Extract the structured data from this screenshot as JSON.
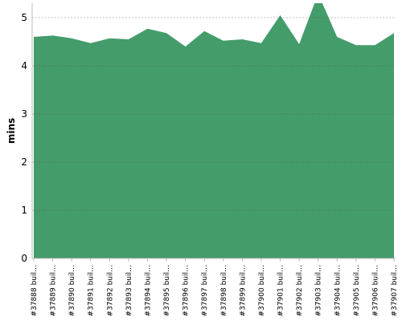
{
  "chart_data": {
    "type": "area",
    "ylabel": "mins",
    "categories": [
      "#37888 buil…",
      "#37889 buil…",
      "#37890 buil…",
      "#37891 buil…",
      "#37892 buil…",
      "#37893 buil…",
      "#37894 buil…",
      "#37895 buil…",
      "#37896 buil…",
      "#37897 buil…",
      "#37898 buil…",
      "#37899 buil…",
      "#37900 buil…",
      "#37901 buil…",
      "#37902 buil…",
      "#37903 buil…",
      "#37904 buil…",
      "#37905 buil…",
      "#37906 buil…",
      "#37907 buil…"
    ],
    "values": [
      4.6,
      4.63,
      4.57,
      4.47,
      4.57,
      4.55,
      4.77,
      4.68,
      4.4,
      4.72,
      4.52,
      4.55,
      4.47,
      5.05,
      4.45,
      5.5,
      4.6,
      4.43,
      4.43,
      4.68
    ],
    "color": "#449c6b",
    "ylim": [
      0,
      5.3
    ],
    "yticks": [
      0,
      1,
      2,
      3,
      4,
      5
    ],
    "grid": true
  }
}
